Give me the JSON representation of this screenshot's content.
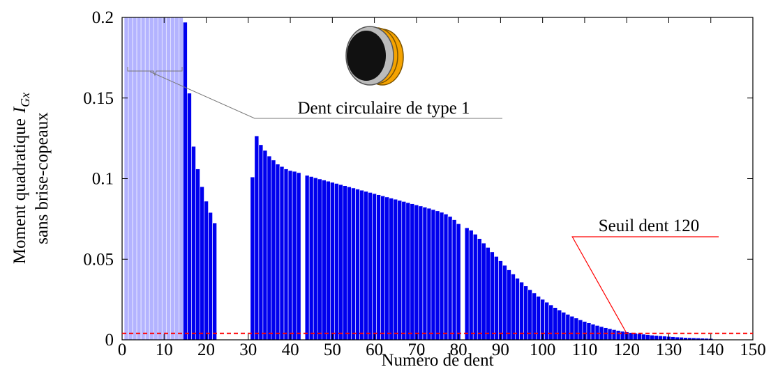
{
  "chart_data": {
    "type": "bar",
    "xlabel": "Numéro de dent",
    "ylabel": {
      "text": "Moment quadratique",
      "symbol": "I",
      "subscript": "Gx",
      "line2": "sans brise-copeaux"
    },
    "xlim": [
      0,
      150
    ],
    "xticks": [
      0,
      10,
      20,
      30,
      40,
      50,
      60,
      70,
      80,
      90,
      100,
      110,
      120,
      130,
      140,
      150
    ],
    "ylim": [
      0,
      0.2
    ],
    "yticks": [
      0,
      0.05,
      0.1,
      0.15,
      0.2
    ],
    "series": [
      {
        "color": "#b3b3ff",
        "x": [
          1,
          2,
          3,
          4,
          5,
          6,
          7,
          8,
          9,
          10,
          11,
          12,
          13,
          14
        ],
        "values": [
          0.25,
          0.25,
          0.25,
          0.25,
          0.25,
          0.25,
          0.25,
          0.25,
          0.25,
          0.25,
          0.25,
          0.25,
          0.25,
          0.25
        ]
      },
      {
        "color": "#0000ee",
        "x": [
          15,
          16,
          17,
          18,
          19,
          20,
          21,
          22,
          23,
          24,
          25,
          26,
          27,
          28,
          29,
          30,
          31,
          32,
          33,
          34,
          35,
          36,
          37,
          38,
          39,
          40,
          41,
          42,
          43,
          44,
          45,
          46,
          47,
          48,
          49,
          50,
          51,
          52,
          53,
          54,
          55,
          56,
          57,
          58,
          59,
          60,
          61,
          62,
          63,
          64,
          65,
          66,
          67,
          68,
          69,
          70,
          71,
          72,
          73,
          74,
          75,
          76,
          77,
          78,
          79,
          80,
          81,
          82,
          83,
          84,
          85,
          86,
          87,
          88,
          89,
          90,
          91,
          92,
          93,
          94,
          95,
          96,
          97,
          98,
          99,
          100,
          101,
          102,
          103,
          104,
          105,
          106,
          107,
          108,
          109,
          110,
          111,
          112,
          113,
          114,
          115,
          116,
          117,
          118,
          119,
          120,
          121,
          122,
          123,
          124,
          125,
          126,
          127,
          128,
          129,
          130,
          131,
          132,
          133,
          134,
          135,
          136,
          137,
          138,
          139,
          140
        ],
        "values": [
          0.197,
          0.153,
          0.12,
          0.106,
          0.095,
          0.086,
          0.079,
          0.0725,
          null,
          null,
          null,
          null,
          null,
          null,
          null,
          null,
          0.101,
          0.1265,
          0.121,
          0.1175,
          0.114,
          0.1115,
          0.109,
          0.1075,
          0.106,
          0.105,
          0.1045,
          0.1037,
          null,
          0.102,
          0.1013,
          0.1005,
          0.0998,
          0.0991,
          0.0984,
          0.0977,
          0.097,
          0.0963,
          0.0956,
          0.0949,
          0.0942,
          0.0935,
          0.0928,
          0.0921,
          0.0914,
          0.0907,
          0.09,
          0.0893,
          0.0886,
          0.0879,
          0.0872,
          0.0865,
          0.0858,
          0.0851,
          0.0844,
          0.0837,
          0.083,
          0.0823,
          0.0816,
          0.0808,
          0.08,
          0.0791,
          0.078,
          0.0765,
          0.0745,
          0.072,
          null,
          0.0695,
          0.068,
          0.0655,
          0.0628,
          0.06,
          0.0573,
          0.0545,
          0.0517,
          0.049,
          0.0462,
          0.0434,
          0.0408,
          0.0382,
          0.0358,
          0.0334,
          0.0311,
          0.029,
          0.027,
          0.0251,
          0.0233,
          0.0216,
          0.02,
          0.0185,
          0.0171,
          0.0158,
          0.0146,
          0.0135,
          0.0124,
          0.0114,
          0.0105,
          0.0097,
          0.0089,
          0.0082,
          0.0075,
          0.0069,
          0.0063,
          0.0058,
          0.0053,
          0.0049,
          0.0045,
          0.0041,
          0.0038,
          0.0035,
          0.0032,
          0.0029,
          0.0027,
          0.0025,
          0.0023,
          0.0021,
          0.0019,
          0.0017,
          0.0016,
          0.0014,
          0.0013,
          0.0012,
          0.0011,
          0.001,
          0.0009,
          0.0008
        ]
      }
    ],
    "annotation": "Dent circulaire de type 1",
    "threshold": {
      "value": 0.004,
      "x": 120,
      "label": "Seuil dent 120",
      "color": "#ff0000"
    }
  }
}
